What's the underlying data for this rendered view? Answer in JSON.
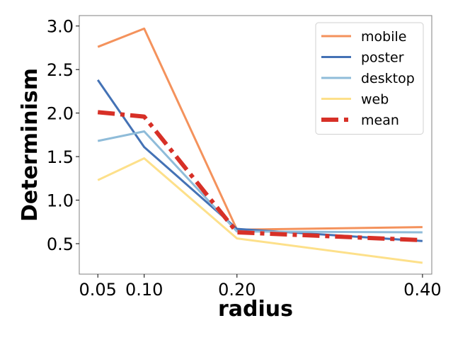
{
  "chart_data": {
    "type": "line",
    "xlabel": "radius",
    "ylabel": "Determinism",
    "x": [
      0.05,
      0.1,
      0.2,
      0.4
    ],
    "x_tick_labels": [
      "0.05",
      "0.10",
      "0.20",
      "0.40"
    ],
    "y_ticks": [
      0.5,
      1.0,
      1.5,
      2.0,
      2.5,
      3.0
    ],
    "y_tick_labels": [
      "0.5",
      "1.0",
      "1.5",
      "2.0",
      "2.5",
      "3.0"
    ],
    "xlim": [
      0.03,
      0.41
    ],
    "ylim": [
      0.15,
      3.12
    ],
    "grid": false,
    "legend_position": "top-right",
    "series": [
      {
        "name": "mobile",
        "values": [
          2.76,
          2.97,
          0.66,
          0.69
        ],
        "color": "#f4925c",
        "style": "solid"
      },
      {
        "name": "poster",
        "values": [
          2.38,
          1.61,
          0.67,
          0.53
        ],
        "color": "#4472b5",
        "style": "solid"
      },
      {
        "name": "desktop",
        "values": [
          1.68,
          1.79,
          0.64,
          0.63
        ],
        "color": "#8fbcd9",
        "style": "solid"
      },
      {
        "name": "web",
        "values": [
          1.23,
          1.48,
          0.56,
          0.28
        ],
        "color": "#fde08a",
        "style": "solid"
      },
      {
        "name": "mean",
        "values": [
          2.01,
          1.96,
          0.63,
          0.54
        ],
        "color": "#d73027",
        "style": "dashdot"
      }
    ]
  }
}
